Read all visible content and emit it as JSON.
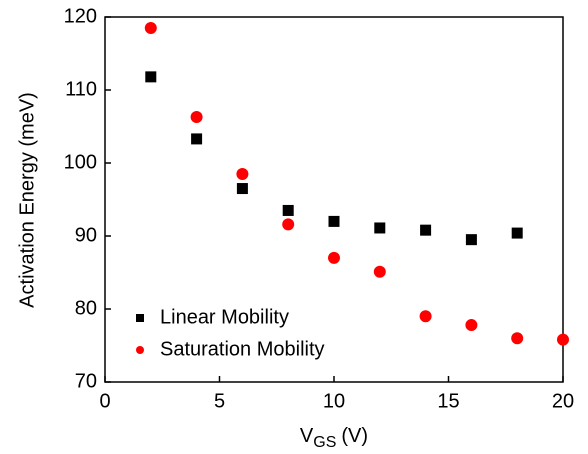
{
  "chart_data": {
    "type": "scatter",
    "x_label": {
      "main": "V",
      "subscript": "GS",
      "suffix": "(V)"
    },
    "y_label": "Activation Energy (meV)",
    "xlim": [
      0,
      20
    ],
    "xticks": [
      0,
      5,
      10,
      15,
      20
    ],
    "ylim": [
      70,
      120
    ],
    "yticks": [
      70,
      80,
      90,
      100,
      110,
      120
    ],
    "legend": "lower left",
    "series": [
      {
        "name": "Linear Mobility",
        "color": "#000000",
        "marker": "square",
        "x": [
          2,
          4,
          6,
          8,
          10,
          12,
          14,
          16,
          18
        ],
        "values": [
          111.8,
          103.3,
          96.5,
          93.5,
          92.0,
          91.1,
          90.8,
          89.5,
          90.4
        ]
      },
      {
        "name": "Saturation Mobility",
        "color": "#ff0000",
        "marker": "circle",
        "x": [
          2,
          4,
          6,
          8,
          10,
          12,
          14,
          16,
          18,
          20
        ],
        "values": [
          118.5,
          106.3,
          98.5,
          91.6,
          87.0,
          85.1,
          79.0,
          77.8,
          76.0,
          75.8
        ]
      }
    ]
  }
}
